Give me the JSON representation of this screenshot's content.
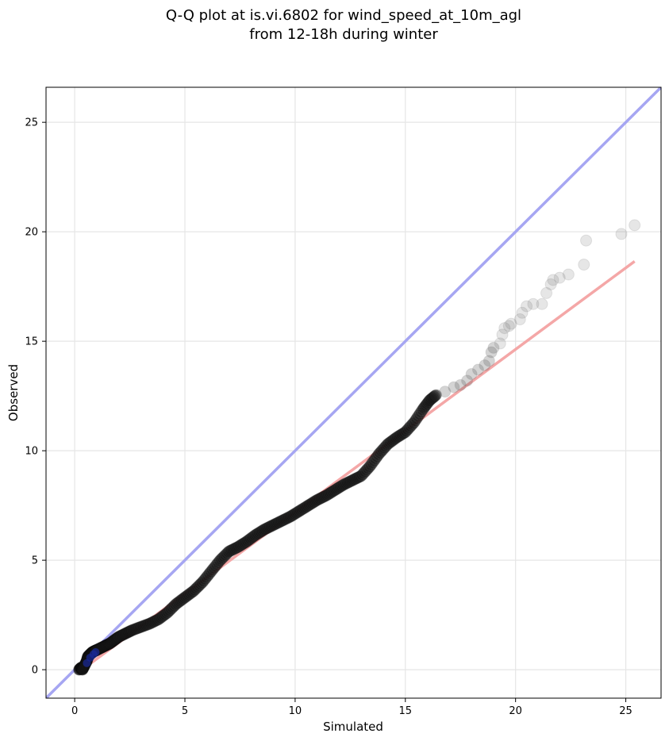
{
  "chart_data": {
    "type": "scatter",
    "title_line1": "Q-Q plot at is.vi.6802 for wind_speed_at_10m_agl",
    "title_line2": "from 12-18h during winter",
    "xlabel": "Simulated",
    "ylabel": "Observed",
    "xlim": [
      -1.3,
      26.6
    ],
    "ylim": [
      -1.3,
      26.6
    ],
    "xticks": [
      0,
      5,
      10,
      15,
      20,
      25
    ],
    "yticks": [
      0,
      5,
      10,
      15,
      20,
      25
    ],
    "grid": true,
    "identity_line": {
      "color": "#a6a6f2",
      "from": [
        -1.3,
        -1.3
      ],
      "to": [
        26.6,
        26.6
      ]
    },
    "fit_line": {
      "color": "#f4a7a7",
      "from": [
        0.2,
        -0.1
      ],
      "to": [
        25.4,
        18.65
      ]
    },
    "points_dense": {
      "x": [
        0.2,
        0.3,
        0.35,
        0.45,
        0.55,
        0.6,
        0.7,
        0.8,
        0.9,
        1.0,
        1.2,
        1.4,
        1.6,
        1.8,
        2.0,
        2.3,
        2.6,
        3.0,
        3.4,
        3.8,
        4.2,
        4.6,
        5.0,
        5.4,
        5.8,
        6.2,
        6.6,
        7.0,
        7.4,
        7.8,
        8.2,
        8.6,
        9.0,
        9.4,
        9.8,
        10.2,
        10.6,
        11.0,
        11.4,
        11.8,
        12.2,
        12.6,
        13.0,
        13.4,
        13.8,
        14.2,
        14.6,
        15.0,
        15.4,
        15.8,
        16.1,
        16.4
      ],
      "y": [
        0.0,
        0.1,
        0.0,
        0.2,
        0.4,
        0.6,
        0.7,
        0.8,
        0.85,
        0.9,
        1.0,
        1.1,
        1.2,
        1.35,
        1.5,
        1.65,
        1.8,
        1.95,
        2.1,
        2.3,
        2.6,
        3.0,
        3.3,
        3.6,
        4.0,
        4.5,
        5.0,
        5.4,
        5.6,
        5.85,
        6.15,
        6.4,
        6.6,
        6.8,
        7.0,
        7.25,
        7.5,
        7.75,
        7.95,
        8.2,
        8.45,
        8.65,
        8.85,
        9.3,
        9.85,
        10.3,
        10.6,
        10.85,
        11.3,
        11.9,
        12.3,
        12.55
      ]
    },
    "points_sparse": {
      "x": [
        16.8,
        17.2,
        17.5,
        17.8,
        18.0,
        18.3,
        18.6,
        18.8,
        18.9,
        19.0,
        19.3,
        19.4,
        19.5,
        19.7,
        19.8,
        20.2,
        20.3,
        20.5,
        20.8,
        21.2,
        21.4,
        21.6,
        21.7,
        22.0,
        22.4,
        23.1,
        23.2,
        24.8,
        25.4
      ],
      "y": [
        12.7,
        12.9,
        13.0,
        13.2,
        13.5,
        13.7,
        13.9,
        14.1,
        14.5,
        14.7,
        14.9,
        15.3,
        15.6,
        15.7,
        15.8,
        16.0,
        16.3,
        16.6,
        16.7,
        16.7,
        17.2,
        17.6,
        17.8,
        17.9,
        18.05,
        18.5,
        19.6,
        19.9,
        20.3
      ]
    }
  }
}
